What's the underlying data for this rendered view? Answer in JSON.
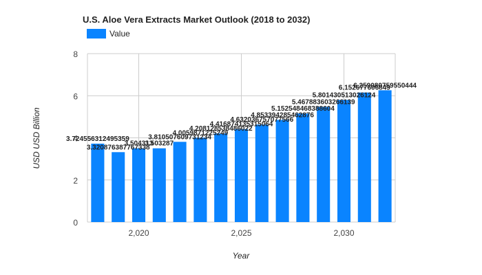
{
  "chart_data": {
    "type": "bar",
    "title": "U.S. Aloe Vera Extracts Market Outlook (2018 to 2032)",
    "xlabel": "Year",
    "ylabel": "USD USD Billion",
    "legend": {
      "position": "top-left",
      "entries": [
        "Value"
      ]
    },
    "grid": true,
    "x": [
      2018,
      2019,
      2020,
      2021,
      2022,
      2023,
      2024,
      2025,
      2026,
      2027,
      2028,
      2029,
      2030,
      2031,
      2032
    ],
    "x_ticks": [
      "2,020",
      "2,025",
      "2,030"
    ],
    "y_ticks": [
      "0",
      "2",
      "4",
      "6",
      "8"
    ],
    "ylim": [
      0,
      8
    ],
    "series": [
      {
        "name": "Value",
        "color": "#0a84ff",
        "values": [
          3.724556312495359,
          3.320876387767338,
          3.504313,
          3.503287,
          3.810507609731234,
          4.0059871225249,
          4.208128538486022,
          4.416874135315064,
          4.632036757077566,
          4.853394285462876,
          5.152548468388604,
          5.467883603266139,
          5.801430513026124,
          6.152677606849,
          6.259080759550444
        ],
        "labels": [
          "3.724556312495359",
          "3.320876387767338",
          "3.504313",
          "3.503287",
          "3.810507609731234",
          "4.0059871225249",
          "4.208128538486022",
          "4.416874135315064",
          "4.632036757077566",
          "4.853394285462876",
          "5.152548468388604",
          "5.467883603266139",
          "5.801430513026124",
          "6.152677606849",
          "6.259080759550444"
        ]
      }
    ]
  }
}
